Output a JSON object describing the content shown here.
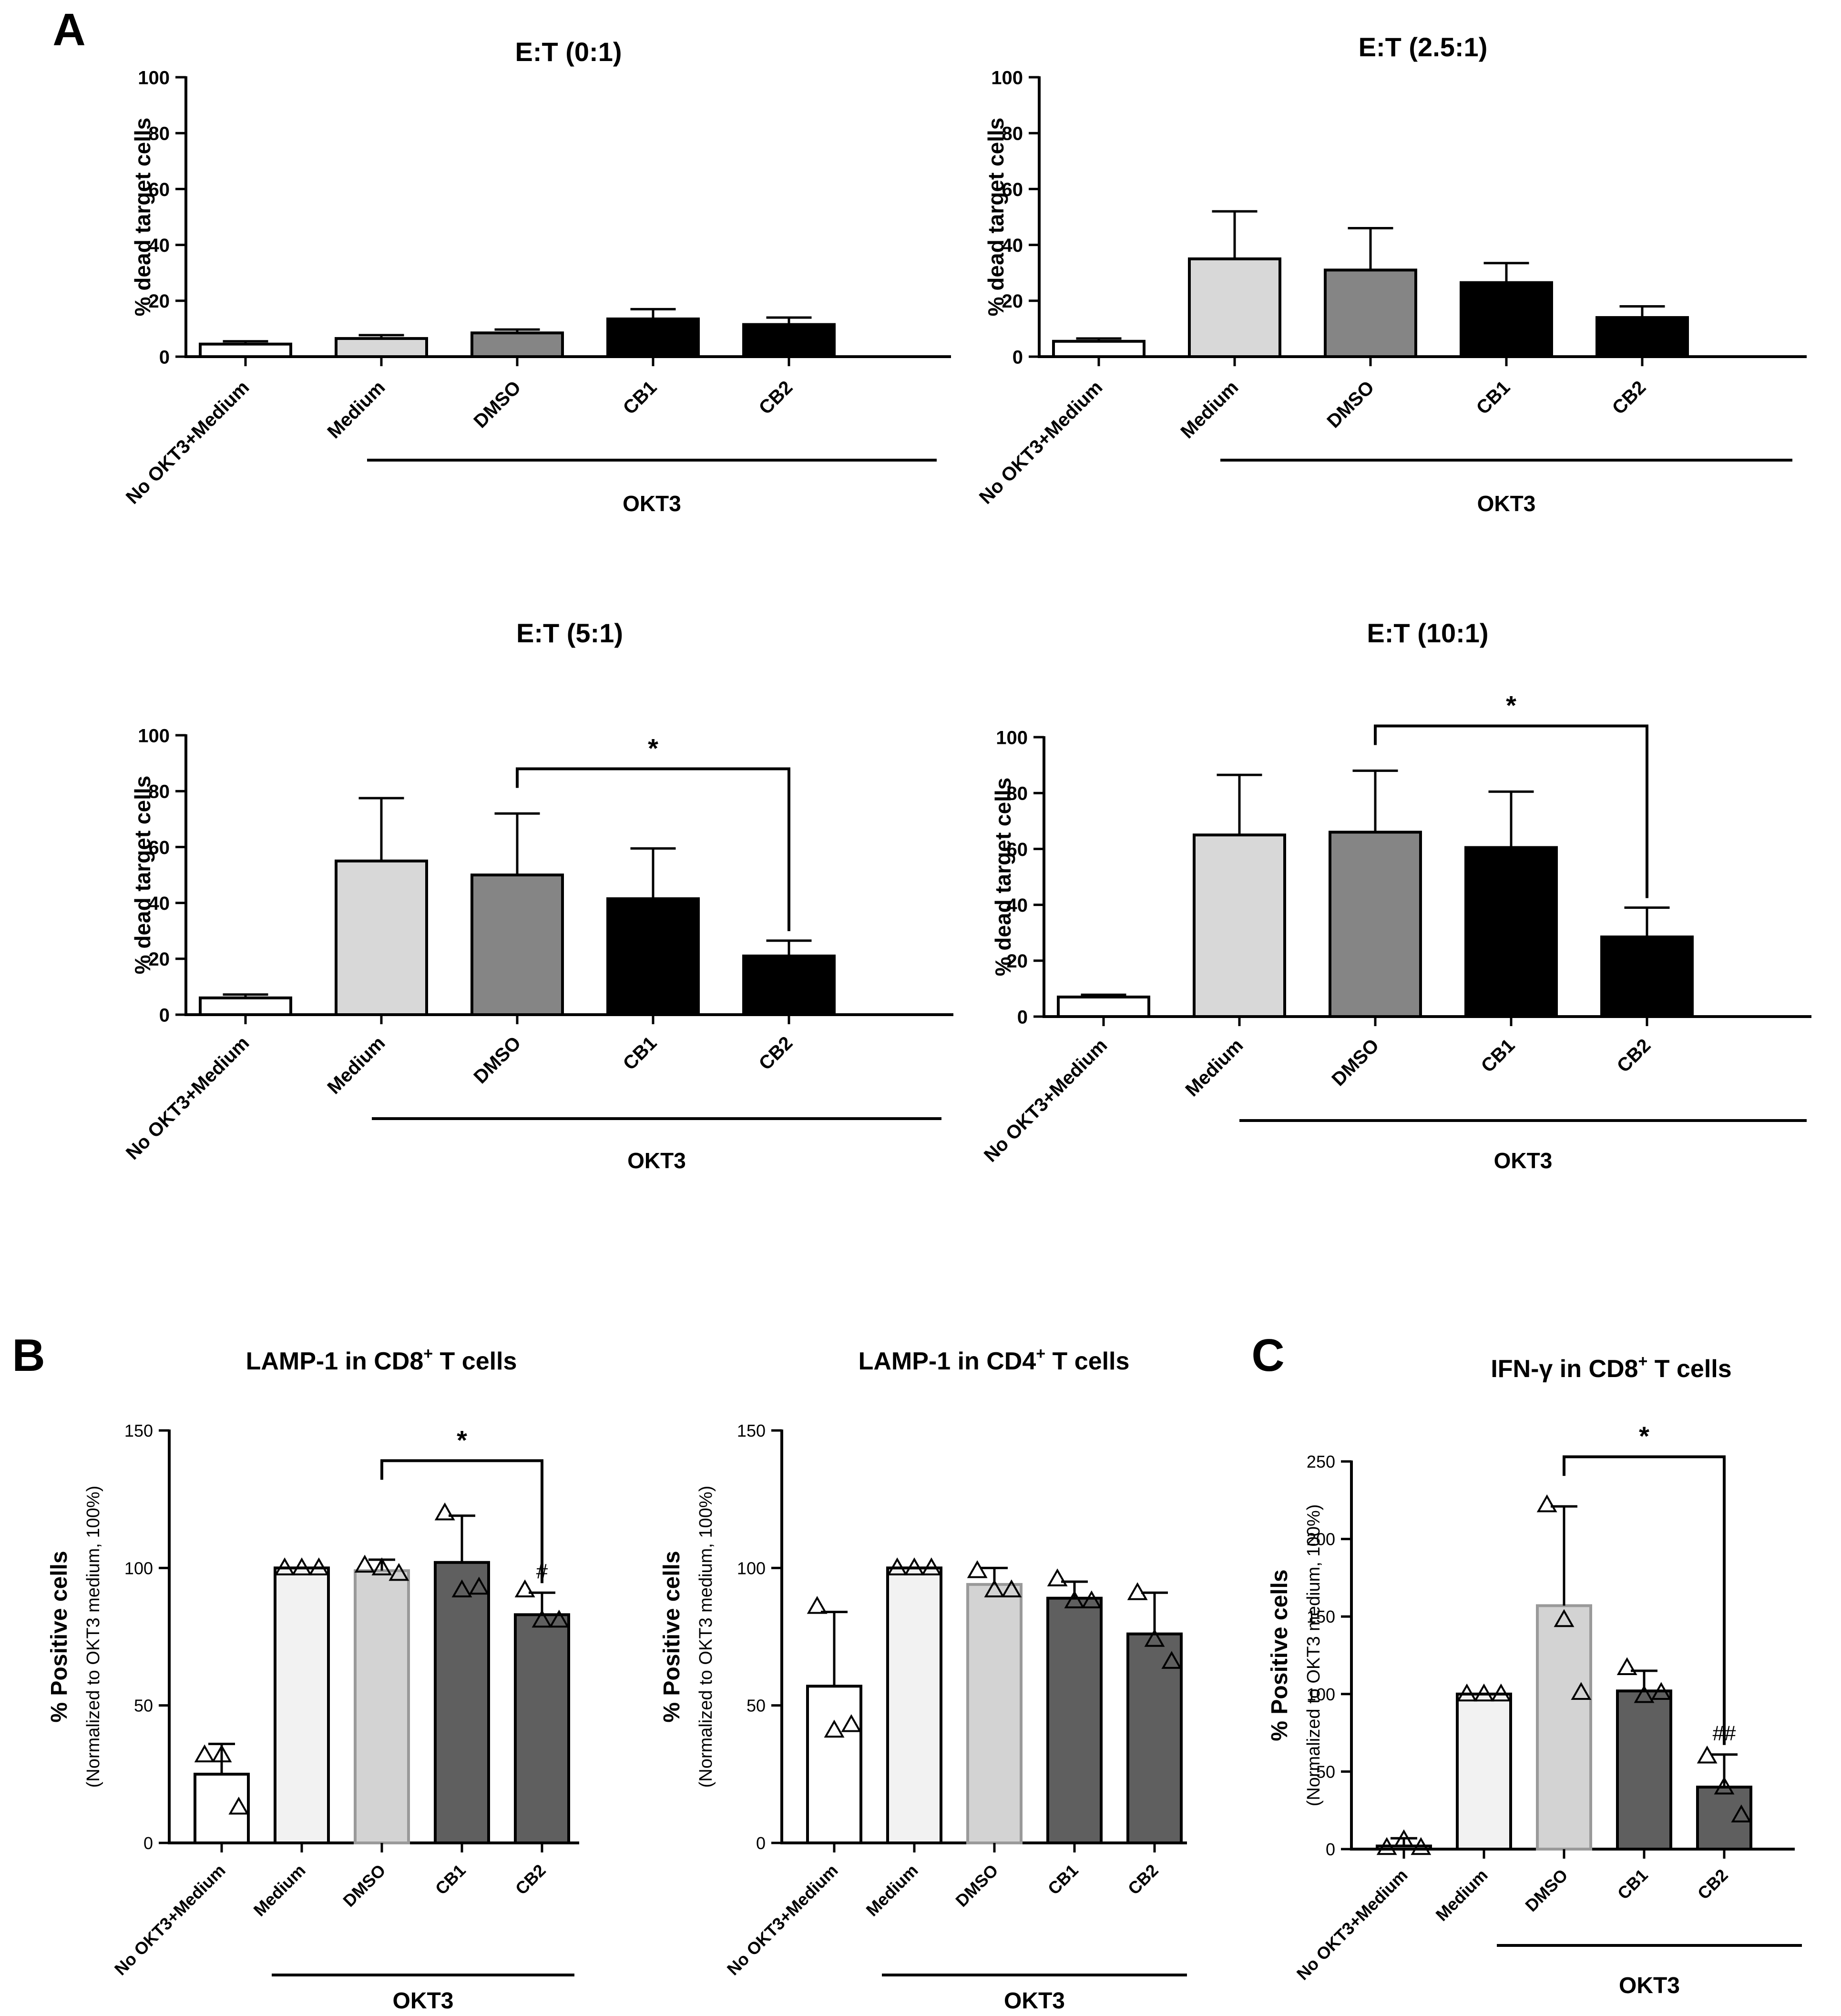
{
  "figure": {
    "panel_letters": [
      "A",
      "B",
      "C"
    ],
    "group_label": "OKT3"
  },
  "colors": {
    "no_okt3_medium": "#ffffff",
    "medium": "#d8d8d8",
    "dmso": "#858585",
    "cb1": "#000000",
    "cb2": "#000000",
    "b_medium": "#f2f2f2",
    "b_dmso": "#d3d3d3",
    "b_cb": "#5f5f5f",
    "axis": "#000000"
  },
  "chart_data": [
    {
      "id": "A1",
      "panel_letter": "A",
      "type": "bar",
      "title": "E:T (0:1)",
      "ylabel": "% dead target cells",
      "categories": [
        "No OKT3+Medium",
        "Medium",
        "DMSO",
        "CB1",
        "CB2"
      ],
      "values": [
        4.5,
        6.5,
        8.5,
        13.5,
        11.5
      ],
      "errors": [
        1.0,
        1.2,
        1.2,
        3.5,
        2.5
      ],
      "ylim": [
        0,
        100
      ],
      "yticks": [
        0,
        20,
        40,
        60,
        80,
        100
      ],
      "group": "OKT3",
      "bracket": null
    },
    {
      "id": "A2",
      "panel_letter": null,
      "type": "bar",
      "title": "E:T (2.5:1)",
      "ylabel": "% dead target cells",
      "categories": [
        "No OKT3+Medium",
        "Medium",
        "DMSO",
        "CB1",
        "CB2"
      ],
      "values": [
        5.5,
        35,
        31,
        26.5,
        14
      ],
      "errors": [
        1.0,
        17,
        15,
        7,
        4
      ],
      "ylim": [
        0,
        100
      ],
      "yticks": [
        0,
        20,
        40,
        60,
        80,
        100
      ],
      "group": "OKT3",
      "bracket": null
    },
    {
      "id": "A3",
      "panel_letter": null,
      "type": "bar",
      "title": "E:T (5:1)",
      "ylabel": "% dead target cells",
      "categories": [
        "No OKT3+Medium",
        "Medium",
        "DMSO",
        "CB1",
        "CB2"
      ],
      "values": [
        6,
        55,
        50,
        41.5,
        21
      ],
      "errors": [
        1.2,
        22.5,
        22,
        18,
        5.5
      ],
      "ylim": [
        0,
        100
      ],
      "yticks": [
        0,
        20,
        40,
        60,
        80,
        100
      ],
      "group": "OKT3",
      "bracket": {
        "from": 2,
        "to": 4,
        "label": "*",
        "y": 88
      }
    },
    {
      "id": "A4",
      "panel_letter": null,
      "type": "bar",
      "title": "E:T (10:1)",
      "ylabel": "% dead target cells",
      "categories": [
        "No OKT3+Medium",
        "Medium",
        "DMSO",
        "CB1",
        "CB2"
      ],
      "values": [
        7,
        65,
        66,
        60.5,
        28.5
      ],
      "errors": [
        0.8,
        21.5,
        22,
        20,
        10.5
      ],
      "ylim": [
        0,
        100
      ],
      "yticks": [
        0,
        20,
        40,
        60,
        80,
        100
      ],
      "group": "OKT3",
      "bracket": {
        "from": 2,
        "to": 4,
        "label": "*",
        "y": 104
      }
    },
    {
      "id": "B1",
      "panel_letter": "B",
      "type": "bar",
      "title": "LAMP-1 in CD8",
      "title_sup": "+",
      "title_suffix": " T cells",
      "ylabel": "% Positive cells",
      "ylabel2": "(Normalized to OKT3 medium, 100%)",
      "categories": [
        "No OKT3+Medium",
        "Medium",
        "DMSO",
        "CB1",
        "CB2"
      ],
      "values": [
        25,
        100,
        99,
        102,
        83
      ],
      "errors": [
        11,
        0,
        4,
        17,
        8
      ],
      "points": [
        [
          32,
          32,
          13
        ],
        [
          100,
          100,
          100
        ],
        [
          101,
          100,
          98
        ],
        [
          120,
          92,
          93
        ],
        [
          92,
          81,
          81
        ]
      ],
      "annotations": [
        "",
        "",
        "",
        "",
        "#"
      ],
      "ylim": [
        0,
        150
      ],
      "yticks": [
        0,
        50,
        100,
        150
      ],
      "group": "OKT3",
      "bracket": {
        "from": 2,
        "to": 4,
        "label": "*",
        "y": 139
      }
    },
    {
      "id": "B2",
      "panel_letter": null,
      "type": "bar",
      "title": "LAMP-1 in CD4",
      "title_sup": "+",
      "title_suffix": " T cells",
      "ylabel": "% Positive cells",
      "ylabel2": "(Normalized to OKT3 medium, 100%)",
      "categories": [
        "No OKT3+Medium",
        "Medium",
        "DMSO",
        "CB1",
        "CB2"
      ],
      "values": [
        57,
        100,
        94,
        89,
        76
      ],
      "errors": [
        27,
        0,
        6,
        6,
        15
      ],
      "points": [
        [
          86,
          41,
          43
        ],
        [
          100,
          100,
          100
        ],
        [
          99,
          92,
          92
        ],
        [
          96,
          88,
          88
        ],
        [
          91,
          74,
          66
        ]
      ],
      "annotations": [
        "",
        "",
        "",
        "",
        ""
      ],
      "ylim": [
        0,
        150
      ],
      "yticks": [
        0,
        50,
        100,
        150
      ],
      "group": "OKT3",
      "bracket": null
    },
    {
      "id": "C1",
      "panel_letter": "C",
      "type": "bar",
      "title": "IFN-γ in CD8",
      "title_sup": "+",
      "title_suffix": " T cells",
      "ylabel": "% Positive cells",
      "ylabel2": "(Normalized to OKT3 medium, 100%)",
      "categories": [
        "No OKT3+Medium",
        "Medium",
        "DMSO",
        "CB1",
        "CB2"
      ],
      "values": [
        2,
        100,
        157,
        102,
        40
      ],
      "errors": [
        5,
        0,
        64,
        13,
        21
      ],
      "points": [
        [
          1,
          6,
          1
        ],
        [
          100,
          100,
          100
        ],
        [
          222,
          148,
          101
        ],
        [
          117,
          99,
          101
        ],
        [
          60,
          40,
          22
        ]
      ],
      "annotations": [
        "",
        "",
        "",
        "",
        "##"
      ],
      "ylim": [
        0,
        250
      ],
      "yticks": [
        0,
        50,
        100,
        150,
        200,
        250
      ],
      "group": "OKT3",
      "bracket": {
        "from": 2,
        "to": 4,
        "label": "*",
        "y": 253
      }
    }
  ]
}
